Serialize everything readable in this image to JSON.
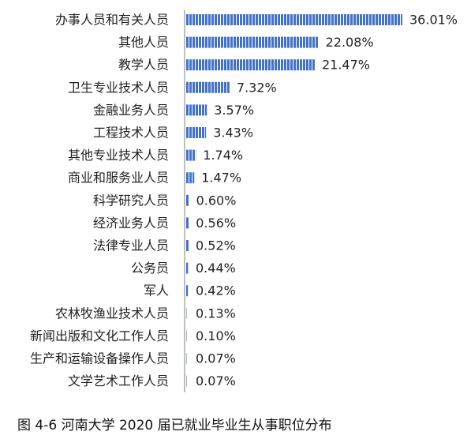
{
  "chart_data": {
    "type": "bar",
    "orientation": "horizontal",
    "categories": [
      "办事人员和有关人员",
      "其他人员",
      "教学人员",
      "卫生专业技术人员",
      "金融业务人员",
      "工程技术人员",
      "其他专业技术人员",
      "商业和服务业人员",
      "科学研究人员",
      "经济业务人员",
      "法律专业人员",
      "公务员",
      "军人",
      "农林牧渔业技术人员",
      "新闻出版和文化工作人员",
      "生产和运输设备操作人员",
      "文学艺术工作人员"
    ],
    "values": [
      36.01,
      22.08,
      21.47,
      7.32,
      3.57,
      3.43,
      1.74,
      1.47,
      0.6,
      0.56,
      0.52,
      0.44,
      0.42,
      0.13,
      0.1,
      0.07,
      0.07
    ],
    "data_labels": [
      "36.01%",
      "22.08%",
      "21.47%",
      "7.32%",
      "3.57%",
      "3.43%",
      "1.74%",
      "1.47%",
      "0.60%",
      "0.56%",
      "0.52%",
      "0.44%",
      "0.42%",
      "0.13%",
      "0.10%",
      "0.07%",
      "0.07%"
    ],
    "title": "",
    "xlabel": "",
    "ylabel": "",
    "value_unit": "%",
    "xlim": [
      0,
      36.01
    ],
    "grid": false,
    "legend": "none",
    "bar_color": "#4472c4",
    "bar_stripe_color": "#ffffff",
    "axis_color": "#bfbfbf"
  },
  "caption": "图 4-6 河南大学 2020 届已就业毕业生从事职位分布"
}
